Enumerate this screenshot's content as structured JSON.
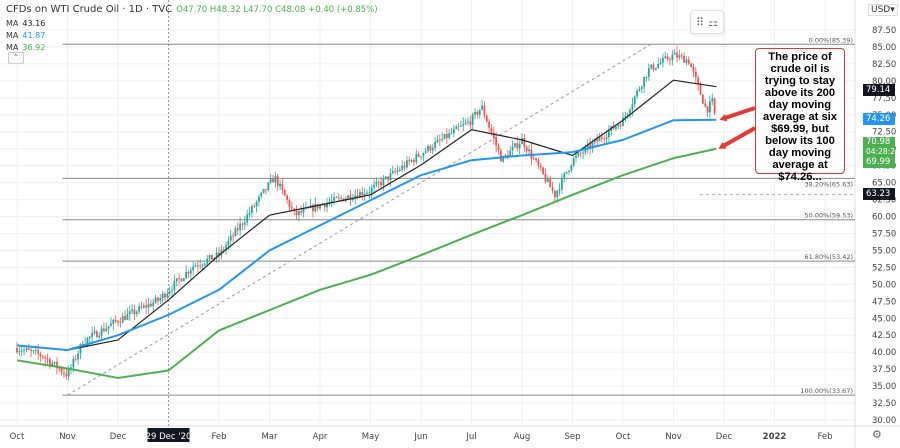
{
  "header": {
    "title": "CFDs on WTI Crude Oil · 1D · TVC",
    "ohlc": "O47.70 H48.32 L47.70 C48.08 +0.40 (+0.85%)"
  },
  "moving_averages": [
    {
      "label": "MA",
      "value": "43.16",
      "color": "#222222"
    },
    {
      "label": "MA",
      "value": "41.87",
      "color": "#2196f3"
    },
    {
      "label": "MA",
      "value": "36.92",
      "color": "#4caf50"
    }
  ],
  "currency": "USD",
  "annotation": "The price of crude oil is trying to stay above its 200 day moving average at six $69.99, but below its 100 day moving average at $74.26...",
  "badges": [
    {
      "value": "79.14",
      "color": "#131722"
    },
    {
      "value": "74.26",
      "color": "#2196f3"
    },
    {
      "value": "70.98",
      "sub": "04:28:26",
      "color": "#4caf50"
    },
    {
      "value": "69.99",
      "color": "#4caf50"
    },
    {
      "value": "63.23",
      "color": "#131722"
    }
  ],
  "chart_data": {
    "type": "candlestick",
    "yaxis_ticks": [
      "87.50",
      "85.00",
      "82.50",
      "80.00",
      "77.50",
      "75.00",
      "72.50",
      "70.00",
      "67.50",
      "65.00",
      "62.50",
      "60.00",
      "57.50",
      "55.00",
      "52.50",
      "50.00",
      "47.50",
      "45.00",
      "42.50",
      "40.00",
      "37.50",
      "35.00",
      "32.50",
      "30.00"
    ],
    "ylim": [
      30,
      87.5
    ],
    "xaxis_ticks": [
      "Oct",
      "Nov",
      "Dec",
      "29 Dec '20",
      "Feb",
      "Mar",
      "Apr",
      "May",
      "Jun",
      "Jul",
      "Aug",
      "Sep",
      "Oct",
      "Nov",
      "Dec",
      "2022",
      "Feb"
    ],
    "price_path": [
      [
        0,
        40.6
      ],
      [
        0.5,
        39.5
      ],
      [
        1.0,
        36.6
      ],
      [
        1.3,
        41.5
      ],
      [
        2.0,
        44.7
      ],
      [
        2.8,
        47.7
      ],
      [
        3.5,
        52.8
      ],
      [
        4.0,
        54.3
      ],
      [
        4.5,
        59.5
      ],
      [
        5.1,
        65.8
      ],
      [
        5.5,
        60.2
      ],
      [
        6.0,
        61.7
      ],
      [
        7.0,
        63.9
      ],
      [
        8.1,
        69.8
      ],
      [
        9.0,
        74.2
      ],
      [
        9.2,
        76.2
      ],
      [
        9.6,
        68.3
      ],
      [
        10.0,
        71.3
      ],
      [
        10.65,
        63.2
      ],
      [
        11.0,
        68.3
      ],
      [
        12.0,
        74.2
      ],
      [
        12.5,
        81.6
      ],
      [
        13.0,
        83.8
      ],
      [
        13.3,
        83.0
      ],
      [
        13.65,
        75.7
      ],
      [
        13.8,
        77.2
      ],
      [
        13.85,
        69.8
      ]
    ],
    "series": [
      {
        "color": "#222222",
        "points": [
          [
            0,
            41
          ],
          [
            1,
            40.3
          ],
          [
            2,
            41.8
          ],
          [
            3,
            47.7
          ],
          [
            4,
            54.3
          ],
          [
            5,
            60.2
          ],
          [
            6,
            61.7
          ],
          [
            7,
            63.2
          ],
          [
            8,
            67.6
          ],
          [
            9,
            72.8
          ],
          [
            10,
            71.3
          ],
          [
            11,
            69
          ],
          [
            12,
            74.2
          ],
          [
            13,
            80.1
          ],
          [
            13.85,
            79.14
          ]
        ]
      },
      {
        "color": "#2196f3",
        "points": [
          [
            0,
            41
          ],
          [
            1,
            40.3
          ],
          [
            2,
            42.5
          ],
          [
            3,
            45.5
          ],
          [
            4,
            49.2
          ],
          [
            5,
            55
          ],
          [
            6,
            58.7
          ],
          [
            7,
            62.4
          ],
          [
            8,
            66.1
          ],
          [
            9,
            68.3
          ],
          [
            10,
            69
          ],
          [
            11,
            69.5
          ],
          [
            12,
            71.3
          ],
          [
            13,
            74.2
          ],
          [
            13.85,
            74.26
          ]
        ]
      },
      {
        "color": "#4caf50",
        "points": [
          [
            0,
            38.8
          ],
          [
            1,
            37.6
          ],
          [
            2,
            36.2
          ],
          [
            3,
            37.3
          ],
          [
            4,
            43.2
          ],
          [
            5,
            46.2
          ],
          [
            6,
            49.2
          ],
          [
            7,
            51.4
          ],
          [
            8,
            54.3
          ],
          [
            9,
            57.3
          ],
          [
            10,
            60.2
          ],
          [
            11,
            63.2
          ],
          [
            12,
            66.1
          ],
          [
            13,
            68.6
          ],
          [
            13.85,
            69.99
          ]
        ]
      }
    ],
    "fib_levels": [
      {
        "label": "0.00%(85.39)",
        "value": 85.39
      },
      {
        "label": "38.20%(65.63)",
        "value": 65.63
      },
      {
        "label": "50.00%(59.53)",
        "value": 59.53
      },
      {
        "label": "61.80%(53.42)",
        "value": 53.42
      },
      {
        "label": "100.00%(33.67)",
        "value": 33.67
      }
    ],
    "trendline": [
      [
        1.0,
        33.67
      ],
      [
        12.55,
        85.39
      ]
    ],
    "dashed_level": 63.23
  }
}
